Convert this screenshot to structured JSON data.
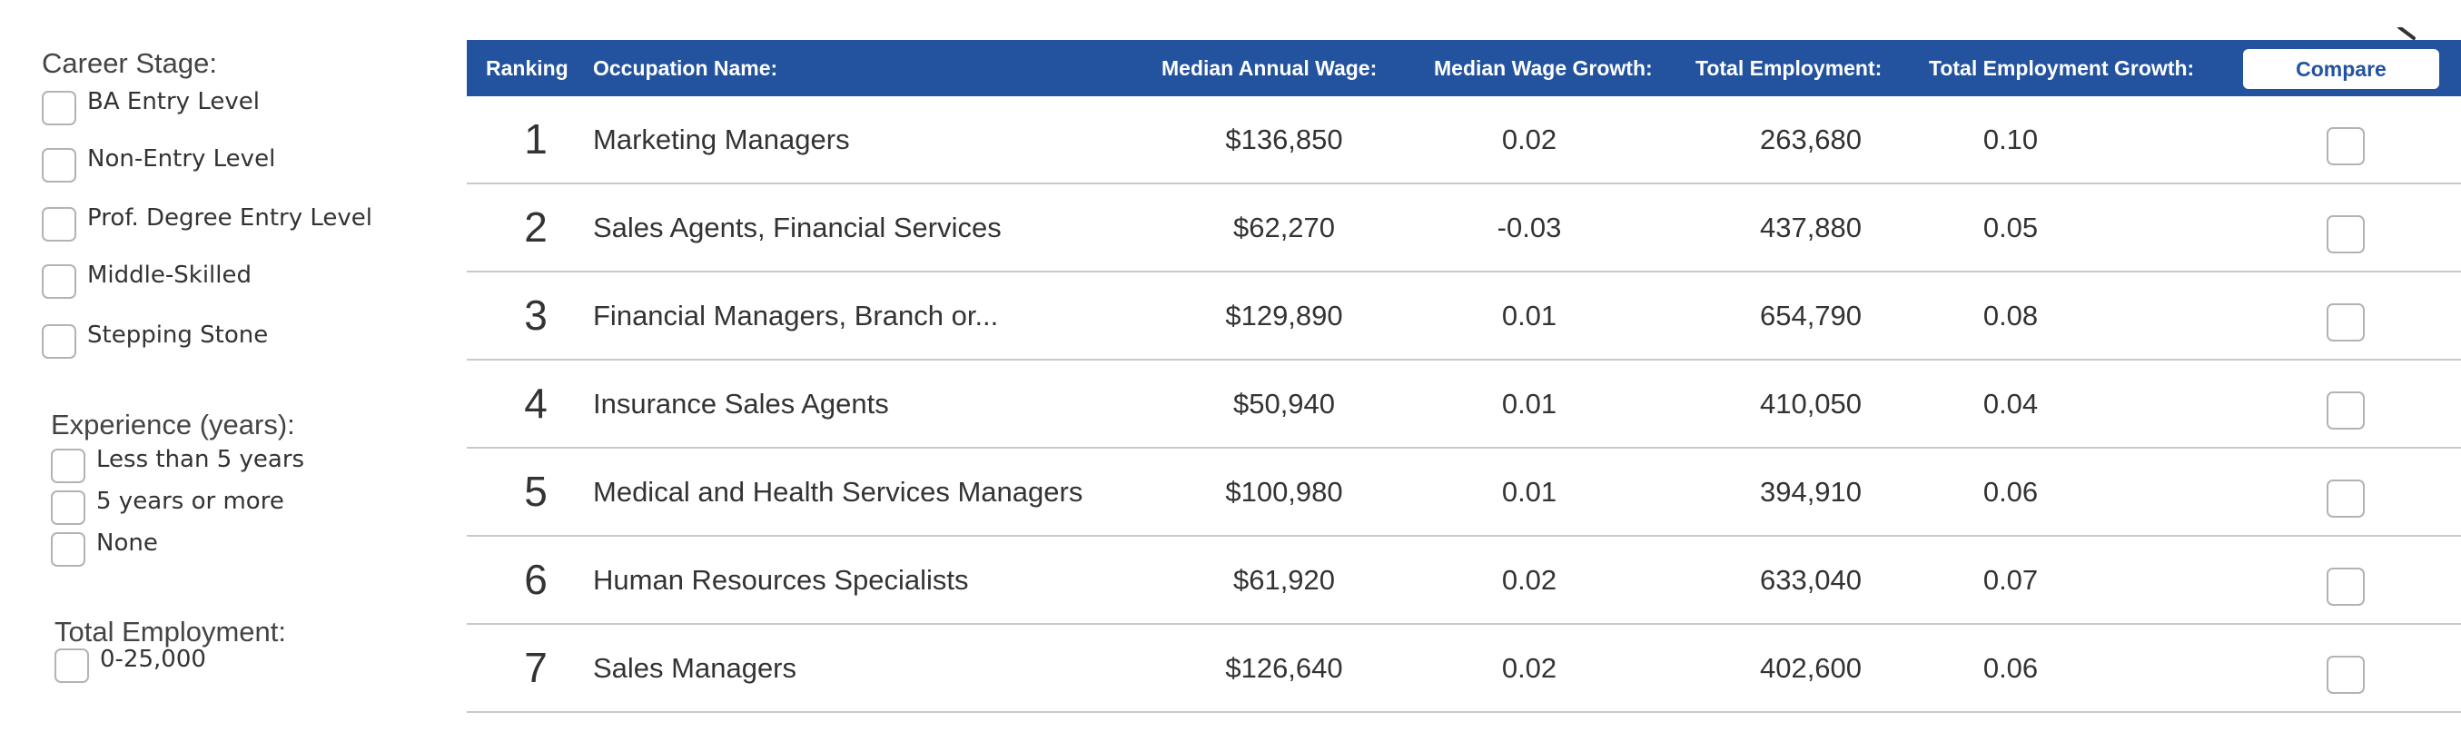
{
  "filters": {
    "career_stage": {
      "heading": "Career Stage:",
      "options": [
        {
          "label": "BA Entry Level",
          "checked": false
        },
        {
          "label": "Non-Entry Level",
          "checked": false
        },
        {
          "label": "Prof. Degree Entry Level",
          "checked": false
        },
        {
          "label": "Middle-Skilled",
          "checked": false
        },
        {
          "label": "Stepping Stone",
          "checked": false
        }
      ]
    },
    "experience": {
      "heading": "Experience (years):",
      "options": [
        {
          "label": "Less than 5 years",
          "checked": false
        },
        {
          "label": "5 years or more",
          "checked": false
        },
        {
          "label": "None",
          "checked": false
        }
      ]
    },
    "total_employment": {
      "heading": "Total Employment:",
      "options": [
        {
          "label": "0-25,000",
          "checked": false
        }
      ]
    }
  },
  "table": {
    "header_color": "#23539e",
    "columns": {
      "ranking": "Ranking",
      "occupation": "Occupation Name:",
      "wage": "Median Annual Wage:",
      "wage_growth": "Median Wage Growth:",
      "employment": "Total Employment:",
      "employment_growth": "Total Employment Growth:"
    },
    "compare_label": "Compare",
    "rows": [
      {
        "rank": "1",
        "occupation": "Marketing Managers",
        "wage": "$136,850",
        "wage_growth": "0.02",
        "employment": "263,680",
        "employment_growth": "0.10"
      },
      {
        "rank": "2",
        "occupation": "Sales Agents, Financial Services",
        "wage": "$62,270",
        "wage_growth": "-0.03",
        "employment": "437,880",
        "employment_growth": "0.05"
      },
      {
        "rank": "3",
        "occupation": "Financial Managers, Branch or...",
        "wage": "$129,890",
        "wage_growth": "0.01",
        "employment": "654,790",
        "employment_growth": "0.08"
      },
      {
        "rank": "4",
        "occupation": "Insurance Sales Agents",
        "wage": "$50,940",
        "wage_growth": "0.01",
        "employment": "410,050",
        "employment_growth": "0.04"
      },
      {
        "rank": "5",
        "occupation": "Medical and Health Services Managers",
        "wage": "$100,980",
        "wage_growth": "0.01",
        "employment": "394,910",
        "employment_growth": "0.06"
      },
      {
        "rank": "6",
        "occupation": "Human Resources Specialists",
        "wage": "$61,920",
        "wage_growth": "0.02",
        "employment": "633,040",
        "employment_growth": "0.07"
      },
      {
        "rank": "7",
        "occupation": "Sales Managers",
        "wage": "$126,640",
        "wage_growth": "0.02",
        "employment": "402,600",
        "employment_growth": "0.06"
      }
    ]
  }
}
